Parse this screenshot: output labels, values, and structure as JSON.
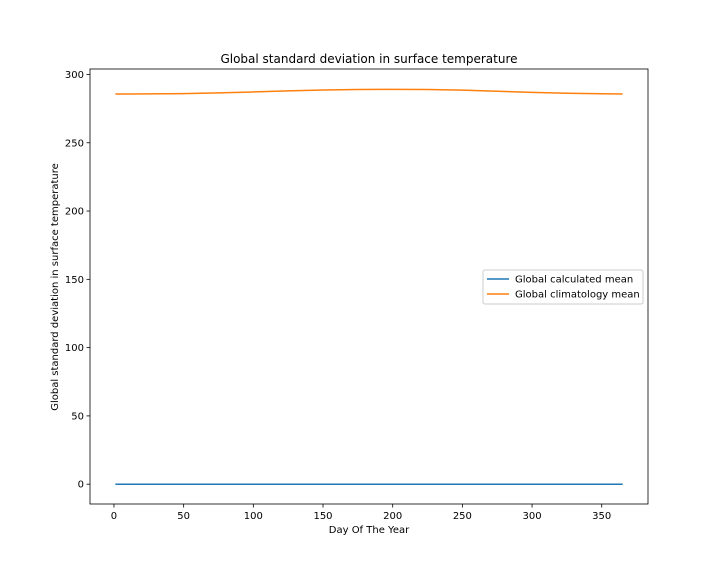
{
  "chart_data": {
    "type": "line",
    "title": "Global standard deviation in surface temperature",
    "xlabel": "Day Of The Year",
    "ylabel": "Global standard deviation in surface temperature",
    "xlim": [
      -17.2,
      383.2
    ],
    "ylim": [
      -14.5,
      304
    ],
    "xticks": [
      0,
      50,
      100,
      150,
      200,
      250,
      300,
      350
    ],
    "yticks": [
      0,
      50,
      100,
      150,
      200,
      250,
      300
    ],
    "grid": false,
    "legend": {
      "placement": "center-right"
    },
    "x": [
      1,
      25,
      50,
      75,
      100,
      125,
      150,
      175,
      200,
      225,
      250,
      275,
      300,
      325,
      350,
      365
    ],
    "series": [
      {
        "name": "Global calculated mean",
        "color": "#1f77b4",
        "values": [
          0,
          0,
          0,
          0,
          0,
          0,
          0,
          0,
          0,
          0,
          0,
          0,
          0,
          0,
          0,
          0
        ]
      },
      {
        "name": "Global climatology mean",
        "color": "#ff7f0e",
        "values": [
          285.7,
          285.8,
          286.0,
          286.5,
          287.2,
          288.0,
          288.6,
          289.0,
          289.1,
          289.0,
          288.5,
          287.7,
          286.9,
          286.2,
          285.9,
          285.7
        ]
      }
    ]
  }
}
